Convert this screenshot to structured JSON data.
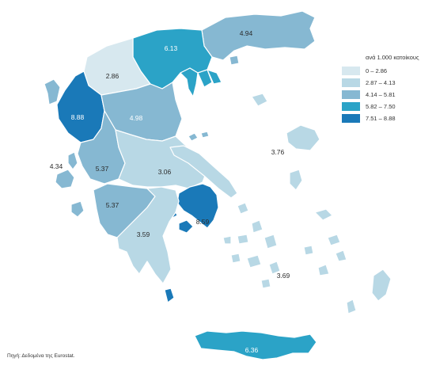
{
  "legend": {
    "title": "ανά 1.000 κατοίκους",
    "classes": [
      {
        "label": "0 – 2.86",
        "color": "#d7e8ef"
      },
      {
        "label": "2.87 – 4.13",
        "color": "#b8d8e5"
      },
      {
        "label": "4.14 – 5.81",
        "color": "#86b8d2"
      },
      {
        "label": "5.82 – 7.50",
        "color": "#2ba3c7"
      },
      {
        "label": "7.51 – 8.88",
        "color": "#1a79b8"
      }
    ]
  },
  "regions": {
    "east_macedonia_thrace": "4.94",
    "central_macedonia": "6.13",
    "west_macedonia": "2.86",
    "epirus": "8.88",
    "thessaly": "4.98",
    "ionian_islands": "4.34",
    "western_greece": "5.37",
    "central_greece": "3.06",
    "north_aegean": "3.76",
    "attica": "8.59",
    "peloponnese_north": "5.37",
    "peloponnese": "3.59",
    "south_aegean": "3.69",
    "crete": "6.36"
  },
  "source": "Πηγή: Δεδομένα της Eurostat."
}
